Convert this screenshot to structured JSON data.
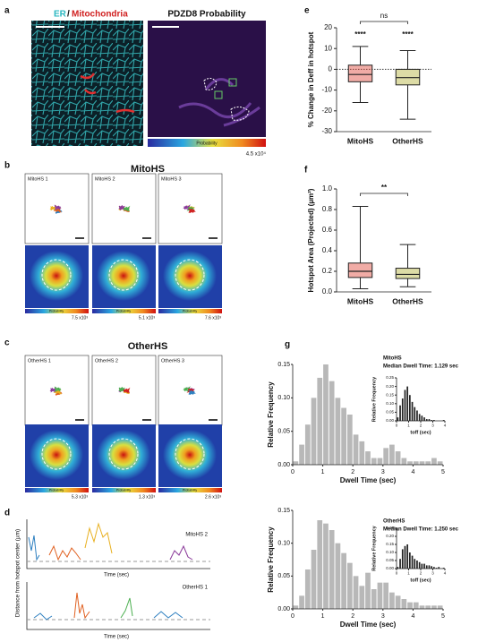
{
  "panels": {
    "a": {
      "label": "a",
      "title_er": "ER",
      "title_sep": "/",
      "title_mito": "Mitochondria",
      "title_right": "PDZD8 Probability",
      "colorbar_label": "Probability",
      "colorbar_max": "4.5 x10⁴"
    },
    "b": {
      "label": "b",
      "title": "MitoHS",
      "tracks": [
        "MitoHS 1",
        "MitoHS 2",
        "MitoHS 3"
      ],
      "colorbar_label": "Probability",
      "colorbar_max": [
        "7.5 x10³",
        "5.1 x10³",
        "7.6 x10³"
      ]
    },
    "c": {
      "label": "c",
      "title": "OtherHS",
      "tracks": [
        "OtherHS 1",
        "OtherHS 2",
        "OtherHS 3"
      ],
      "colorbar_label": "Probability",
      "colorbar_max": [
        "5.3 x10³",
        "1.3 x10³",
        "2.6 x10³"
      ]
    },
    "d": {
      "label": "d",
      "y_label": "Distance from hotspot center (µm)",
      "x_label": "Time (sec)",
      "traces": [
        "MitoHS 2",
        "OtherHS 1"
      ]
    }
  },
  "chart_data": [
    {
      "type": "box",
      "label": "e",
      "y_label": "% Change in Deff in hotspot",
      "categories": [
        "MitoHS",
        "OtherHS"
      ],
      "colors": [
        "#e0463a",
        "#b3b23a"
      ],
      "boxes": [
        {
          "min": -16,
          "q1": -6,
          "median": -2.5,
          "q3": 2,
          "max": 11
        },
        {
          "min": -24,
          "q1": -7.5,
          "median": -4,
          "q3": 0,
          "max": 9
        }
      ],
      "hline": 0,
      "ylim": [
        -30,
        20
      ],
      "yticks": [
        -30,
        -20,
        -10,
        0,
        10,
        20
      ],
      "annotations": [
        "ns",
        "****",
        "****"
      ]
    },
    {
      "type": "box",
      "label": "f",
      "y_label": "Hotspot Area (Projected) (µm²)",
      "categories": [
        "MitoHS",
        "OtherHS"
      ],
      "colors": [
        "#e0463a",
        "#b3b23a"
      ],
      "boxes": [
        {
          "min": 0.03,
          "q1": 0.14,
          "median": 0.2,
          "q3": 0.28,
          "max": 0.83
        },
        {
          "min": 0.05,
          "q1": 0.13,
          "median": 0.17,
          "q3": 0.23,
          "max": 0.46
        }
      ],
      "ylim": [
        0,
        1.0
      ],
      "yticks": [
        {
          "value": 0,
          "label": "0.0"
        },
        0.2,
        0.4,
        0.6,
        0.8,
        {
          "value": 1.0,
          "label": "1.0"
        }
      ],
      "annotations": [
        "**"
      ]
    },
    {
      "type": "histogram",
      "label": "g",
      "y_label": "Relative Frequency",
      "x_label": "Dwell Time (sec)",
      "color": "#b8b8b8",
      "bins": [
        0,
        0.2,
        0.4,
        0.6,
        0.8,
        1.0,
        1.2,
        1.4,
        1.6,
        1.8,
        2.0,
        2.2,
        2.4,
        2.6,
        2.8,
        3.0,
        3.2,
        3.4,
        3.6,
        3.8,
        4.0,
        4.2,
        4.4,
        4.6,
        4.8,
        5.0
      ],
      "values": [
        0.005,
        0.03,
        0.06,
        0.1,
        0.13,
        0.15,
        0.125,
        0.1,
        0.085,
        0.075,
        0.045,
        0.035,
        0.02,
        0.01,
        0.01,
        0.025,
        0.03,
        0.02,
        0.01,
        0.005,
        0.005,
        0.005,
        0.005,
        0.01,
        0.005
      ],
      "xlim": [
        0,
        5
      ],
      "xticks": [
        0,
        1,
        2,
        3,
        4,
        5
      ],
      "ylim": [
        0,
        0.15
      ],
      "yticks": [
        {
          "value": 0,
          "label": "0.00"
        },
        {
          "value": 0.05,
          "label": "0.05"
        },
        {
          "value": 0.1,
          "label": "0.10"
        },
        {
          "value": 0.15,
          "label": "0.15"
        }
      ]
    },
    {
      "type": "histogram",
      "title": "MitoHS",
      "subtitle": "Median Dwell Time: 1.129 sec",
      "y_label": "Relative Frequency",
      "x_label": "toff (sec)",
      "color": "#222",
      "bins": [
        0,
        0.2,
        0.4,
        0.6,
        0.8,
        1.0,
        1.2,
        1.4,
        1.6,
        1.8,
        2.0,
        2.2,
        2.4,
        2.6,
        2.8,
        3.0,
        3.2,
        3.4,
        3.6,
        3.8,
        4.0
      ],
      "values": [
        0.02,
        0.09,
        0.13,
        0.18,
        0.2,
        0.15,
        0.11,
        0.08,
        0.06,
        0.04,
        0.03,
        0.02,
        0.01,
        0.01,
        0.005,
        0.005,
        0,
        0,
        0,
        0.005
      ],
      "xlim": [
        0,
        4
      ],
      "xticks": [
        0,
        1,
        2,
        3,
        4
      ],
      "ylim": [
        0,
        0.25
      ],
      "yticks": [
        {
          "value": 0,
          "label": "0.00"
        },
        {
          "value": 0.05,
          "label": "0.05"
        },
        {
          "value": 0.1,
          "label": "0.10"
        },
        {
          "value": 0.15,
          "label": "0.15"
        },
        {
          "value": 0.2,
          "label": "0.20"
        },
        {
          "value": 0.25,
          "label": "0.25"
        }
      ]
    },
    {
      "type": "histogram",
      "y_label": "Relative Frequency",
      "x_label": "Dwell Time (sec)",
      "color": "#b8b8b8",
      "bins": [
        0,
        0.2,
        0.4,
        0.6,
        0.8,
        1.0,
        1.2,
        1.4,
        1.6,
        1.8,
        2.0,
        2.2,
        2.4,
        2.6,
        2.8,
        3.0,
        3.2,
        3.4,
        3.6,
        3.8,
        4.0,
        4.2,
        4.4,
        4.6,
        4.8,
        5.0
      ],
      "values": [
        0.005,
        0.02,
        0.06,
        0.09,
        0.135,
        0.13,
        0.12,
        0.1,
        0.085,
        0.07,
        0.05,
        0.035,
        0.055,
        0.03,
        0.04,
        0.04,
        0.025,
        0.02,
        0.015,
        0.01,
        0.01,
        0.005,
        0.005,
        0.005,
        0.005
      ],
      "xlim": [
        0,
        5
      ],
      "xticks": [
        0,
        1,
        2,
        3,
        4,
        5
      ],
      "ylim": [
        0,
        0.15
      ],
      "yticks": [
        {
          "value": 0,
          "label": "0.00"
        },
        {
          "value": 0.05,
          "label": "0.05"
        },
        {
          "value": 0.1,
          "label": "0.10"
        },
        {
          "value": 0.15,
          "label": "0.15"
        }
      ]
    },
    {
      "type": "histogram",
      "title": "OtherHS",
      "subtitle": "Median Dwell Time: 1.250 sec",
      "y_label": "Relative Frequency",
      "x_label": "toff (sec)",
      "color": "#222",
      "bins": [
        0,
        0.2,
        0.4,
        0.6,
        0.8,
        1.0,
        1.2,
        1.4,
        1.6,
        1.8,
        2.0,
        2.2,
        2.4,
        2.6,
        2.8,
        3.0,
        3.2,
        3.4,
        3.6,
        3.8,
        4.0
      ],
      "values": [
        0.01,
        0.06,
        0.12,
        0.14,
        0.15,
        0.1,
        0.08,
        0.06,
        0.05,
        0.04,
        0.03,
        0.03,
        0.02,
        0.02,
        0.015,
        0.01,
        0.005,
        0.01,
        0,
        0.005
      ],
      "xlim": [
        0,
        4
      ],
      "xticks": [
        0,
        1,
        2,
        3,
        4
      ],
      "ylim": [
        0,
        0.25
      ],
      "yticks": [
        {
          "value": 0,
          "label": "0.00"
        },
        {
          "value": 0.05,
          "label": "0.05"
        },
        {
          "value": 0.1,
          "label": "0.10"
        },
        {
          "value": 0.15,
          "label": "0.15"
        },
        {
          "value": 0.2,
          "label": "0.20"
        },
        {
          "value": 0.25,
          "label": "0.25"
        }
      ]
    }
  ]
}
